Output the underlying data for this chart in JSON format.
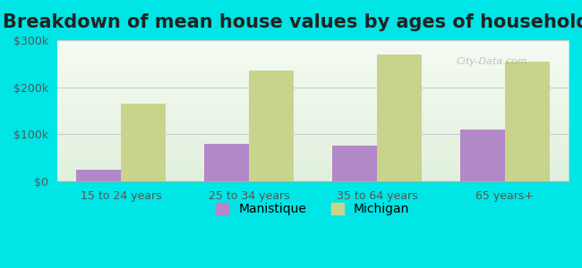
{
  "title": "Breakdown of mean house values by ages of householders",
  "categories": [
    "15 to 24 years",
    "25 to 34 years",
    "35 to 64 years",
    "65 years+"
  ],
  "manistique_values": [
    25000,
    80000,
    75000,
    110000
  ],
  "michigan_values": [
    165000,
    235000,
    270000,
    255000
  ],
  "manistique_color": "#b388c8",
  "michigan_color": "#c8d48c",
  "background_color": "#00e5e5",
  "plot_bg_start": "#e8f5e0",
  "plot_bg_end": "#ffffff",
  "ylim": [
    0,
    300000
  ],
  "yticks": [
    0,
    100000,
    200000,
    300000
  ],
  "ytick_labels": [
    "$0",
    "$100k",
    "$200k",
    "$300k"
  ],
  "bar_width": 0.35,
  "legend_manistique": "Manistique",
  "legend_michigan": "Michigan",
  "watermark": "City-Data.com",
  "title_fontsize": 15,
  "tick_fontsize": 9,
  "legend_fontsize": 10
}
